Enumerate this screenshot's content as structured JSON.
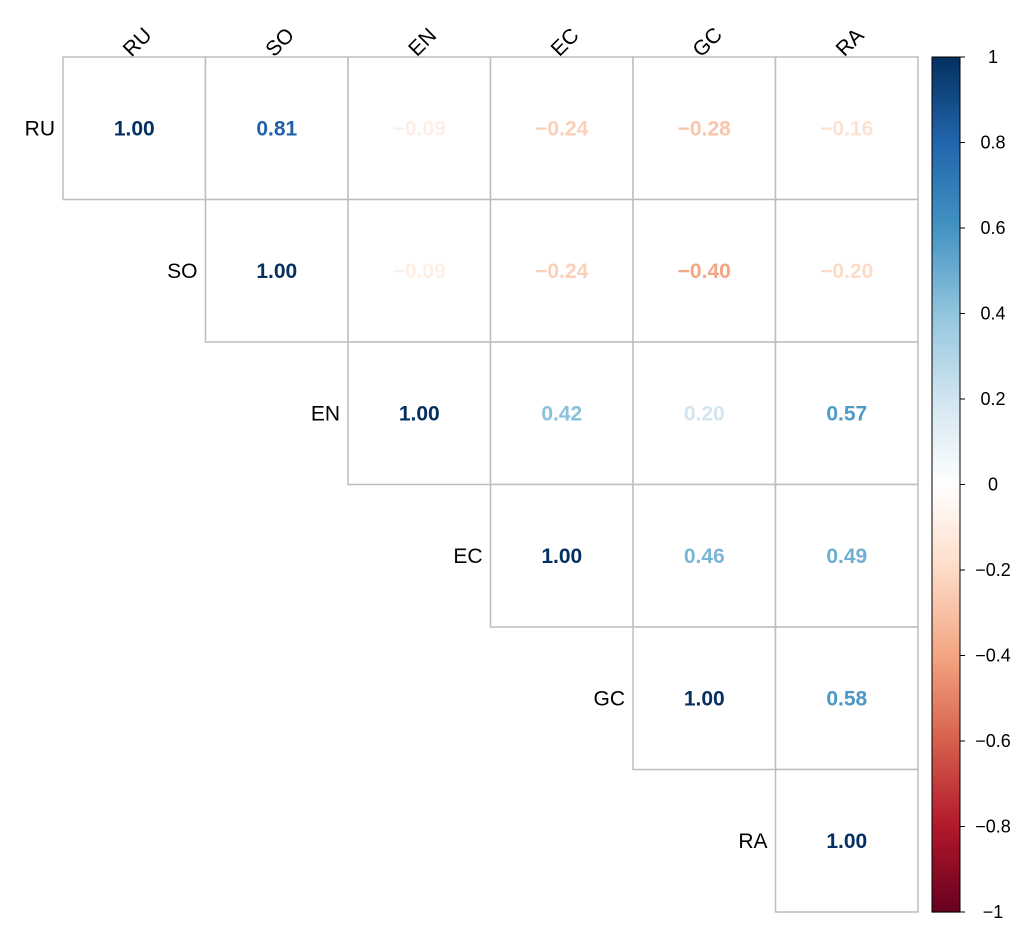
{
  "chart_data": {
    "type": "heatmap",
    "title": "",
    "variables": [
      "RU",
      "SO",
      "EN",
      "EC",
      "GC",
      "RA"
    ],
    "matrix": [
      [
        1.0,
        0.81,
        -0.09,
        -0.24,
        -0.28,
        -0.16
      ],
      [
        0.81,
        1.0,
        -0.09,
        -0.24,
        -0.4,
        -0.2
      ],
      [
        -0.09,
        -0.09,
        1.0,
        0.42,
        0.2,
        0.57
      ],
      [
        -0.24,
        -0.24,
        0.42,
        1.0,
        0.46,
        0.49
      ],
      [
        -0.28,
        -0.4,
        0.2,
        0.46,
        1.0,
        0.58
      ],
      [
        -0.16,
        -0.2,
        0.57,
        0.49,
        0.58,
        1.0
      ]
    ],
    "display": "upper triangle with numeric labels",
    "colorbar": {
      "range": [
        -1,
        1
      ],
      "ticks": [
        1,
        0.8,
        0.6,
        0.4,
        0.2,
        0,
        -0.2,
        -0.4,
        -0.6,
        -0.8,
        -1
      ],
      "tick_labels": [
        "1",
        "0.8",
        "0.6",
        "0.4",
        "0.2",
        "0",
        "−0.2",
        "−0.4",
        "−0.6",
        "−0.8",
        "−1"
      ],
      "placement": "right"
    },
    "palette": [
      "#67001F",
      "#B2182B",
      "#D6604D",
      "#F4A582",
      "#FDDBC7",
      "#FFFFFF",
      "#D1E5F0",
      "#92C5DE",
      "#4393C3",
      "#2166AC",
      "#053061"
    ]
  }
}
